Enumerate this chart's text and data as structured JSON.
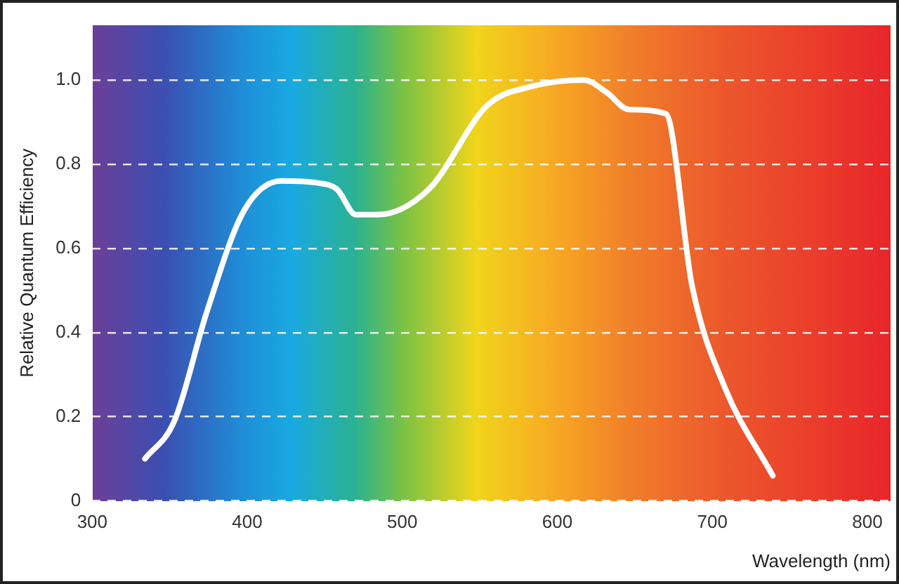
{
  "chart_data": {
    "type": "line",
    "xlabel": "Wavelength (nm)",
    "ylabel": "Relative Quantum Efficiency",
    "x": [
      334,
      353,
      374,
      398,
      422,
      446,
      458,
      470,
      484,
      517,
      555,
      584,
      617,
      632,
      646,
      670,
      687,
      708,
      739
    ],
    "series": [
      {
        "color": "#ffffff",
        "values": [
          0.1,
          0.19,
          0.45,
          0.69,
          0.76,
          0.755,
          0.74,
          0.68,
          0.68,
          0.74,
          0.94,
          0.985,
          1.0,
          0.97,
          0.93,
          0.92,
          0.51,
          0.27,
          0.06
        ]
      }
    ],
    "xlim": [
      300,
      815
    ],
    "xticks": [
      300,
      400,
      500,
      600,
      700,
      800
    ],
    "ylim": [
      0,
      1.13
    ],
    "yticks": [
      0,
      0.2,
      0.4,
      0.6,
      0.8,
      {
        "value": 1,
        "label": "1.0"
      }
    ],
    "grid": "y",
    "legend": false,
    "marker": "none",
    "line_style": "solid"
  }
}
